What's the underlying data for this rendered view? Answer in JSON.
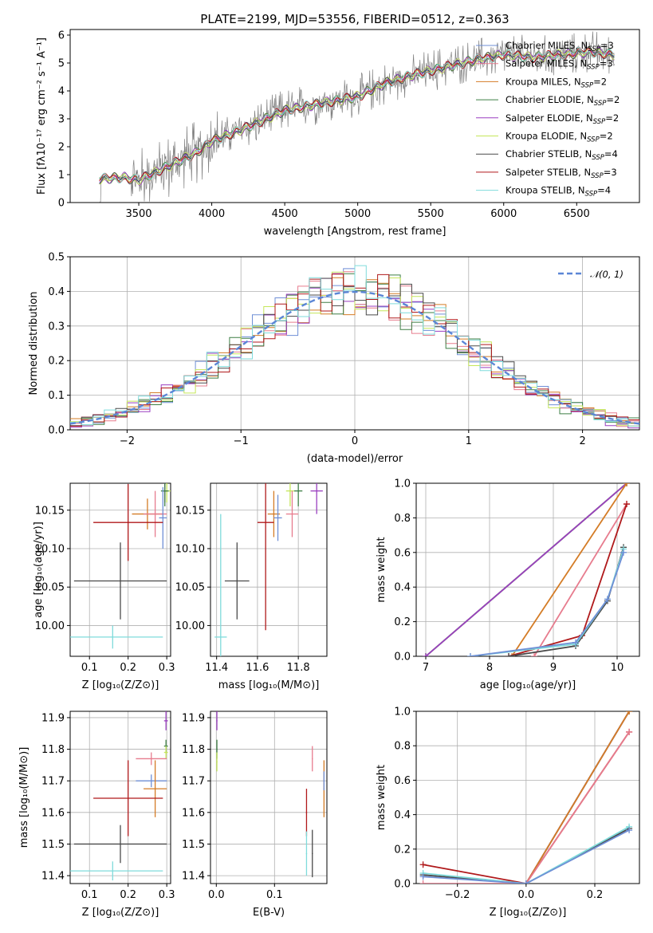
{
  "title": "PLATE=2199, MJD=53556, FIBERID=0512, z=0.363",
  "colors": {
    "chabrier_miles": "#6f8fd6",
    "salpeter_miles": "#e77c8e",
    "kroupa_miles": "#d47c26",
    "chabrier_elodie": "#3e7f45",
    "salpeter_elodie": "#9a3fc0",
    "kroupa_elodie": "#c5e65a",
    "chabrier_stelib": "#4a4a4a",
    "salpeter_stelib": "#b0191b",
    "kroupa_stelib": "#7fdbdb",
    "data": "#808080"
  },
  "chart_data": [
    {
      "id": "spectrum",
      "type": "line",
      "xlabel": "wavelength [Angstrom, rest frame]",
      "ylabel": "Flux [fλ10⁻¹⁷ erg cm⁻² s⁻¹ A⁻¹]",
      "xlim": [
        3030,
        6930
      ],
      "ylim": [
        0,
        6.2
      ],
      "xticks": [
        "3500",
        "4000",
        "4500",
        "5000",
        "5500",
        "6000",
        "6500"
      ],
      "yticks": [
        "0",
        "1",
        "2",
        "3",
        "4",
        "5",
        "6"
      ],
      "continuum": {
        "x": [
          3230,
          3400,
          3500,
          3700,
          3900,
          4000,
          4200,
          4500,
          4800,
          5000,
          5200,
          5400,
          5600,
          5800,
          6000,
          6200,
          6400,
          6600,
          6760
        ],
        "y": [
          0.85,
          0.9,
          0.8,
          1.3,
          1.8,
          2.2,
          2.6,
          3.3,
          3.6,
          3.8,
          4.3,
          4.6,
          4.85,
          5.1,
          5.3,
          5.2,
          5.3,
          5.4,
          5.3
        ]
      },
      "legend": [
        "Chabrier MILES, N_SSP=3",
        "Salpeter MILES, N_SSP=3",
        "Kroupa MILES, N_SSP=2",
        "Chabrier ELODIE, N_SSP=2",
        "Salpeter ELODIE, N_SSP=2",
        "Kroupa ELODIE, N_SSP=2",
        "Chabrier STELIB, N_SSP=4",
        "Salpeter STELIB, N_SSP=3",
        "Kroupa STELIB, N_SSP=4"
      ],
      "legend_position": "top-right"
    },
    {
      "id": "residuals",
      "type": "line",
      "xlabel": "(data-model)/error",
      "ylabel": "Normed distribution",
      "xlim": [
        -2.5,
        2.5
      ],
      "ylim": [
        0,
        0.5
      ],
      "xticks": [
        "−2",
        "−1",
        "0",
        "1",
        "2"
      ],
      "yticks": [
        "0.0",
        "0.1",
        "0.2",
        "0.3",
        "0.4",
        "0.5"
      ],
      "legend": [
        "𝒩(0, 1)"
      ],
      "legend_position": "top-right",
      "bins": 50,
      "base_distribution": "normal(0, 1)",
      "grid": true
    },
    {
      "id": "age_vs_Z",
      "type": "scatter",
      "xlabel": "Z [log₁₀(Z/Z⊙)]",
      "ylabel": "age  [log₁₀(age/yr)]",
      "xlim": [
        0.05,
        0.31
      ],
      "ylim": [
        9.96,
        10.185
      ],
      "xticks": [
        "0.1",
        "0.2",
        "0.3"
      ],
      "yticks": [
        "10.00",
        "10.05",
        "10.10",
        "10.15"
      ],
      "grid": true,
      "points": [
        {
          "x": 0.3,
          "y": 10.175,
          "xerr": 0.01,
          "yerr": 0.015,
          "series": "kroupa_elodie"
        },
        {
          "x": 0.295,
          "y": 10.175,
          "xerr": 0.005,
          "yerr": 0.015,
          "series": "salpeter_elodie"
        },
        {
          "x": 0.295,
          "y": 10.175,
          "xerr": 0.01,
          "yerr": 0.02,
          "series": "chabrier_elodie"
        },
        {
          "x": 0.25,
          "y": 10.145,
          "xerr": 0.04,
          "yerr": 0.02,
          "series": "kroupa_miles"
        },
        {
          "x": 0.27,
          "y": 10.145,
          "xerr": 0.03,
          "yerr": 0.03,
          "series": "salpeter_miles"
        },
        {
          "x": 0.29,
          "y": 10.14,
          "xerr": 0.01,
          "yerr": 0.04,
          "series": "chabrier_miles"
        },
        {
          "x": 0.2,
          "y": 10.134,
          "xerr": 0.09,
          "yerr": 0.05,
          "series": "salpeter_stelib"
        },
        {
          "x": 0.18,
          "y": 10.058,
          "xerr": 0.12,
          "yerr": 0.05,
          "series": "chabrier_stelib"
        },
        {
          "x": 0.16,
          "y": 9.985,
          "xerr": 0.13,
          "yerr": 0.015,
          "series": "kroupa_stelib"
        }
      ]
    },
    {
      "id": "age_vs_mass",
      "type": "scatter",
      "xlabel": "mass [log₁₀(M/M⊙)]",
      "ylabel": "",
      "xlim": [
        11.37,
        11.94
      ],
      "ylim": [
        9.96,
        10.185
      ],
      "xticks": [
        "11.4",
        "11.6",
        "11.8"
      ],
      "yticks": [
        "10.00",
        "10.05",
        "10.10",
        "10.15"
      ],
      "grid": true,
      "points": [
        {
          "x": 11.89,
          "y": 10.175,
          "xerr": 0.03,
          "yerr": 0.03,
          "series": "salpeter_elodie"
        },
        {
          "x": 11.8,
          "y": 10.175,
          "xerr": 0.02,
          "yerr": 0.02,
          "series": "chabrier_elodie"
        },
        {
          "x": 11.76,
          "y": 10.175,
          "xerr": 0.02,
          "yerr": 0.02,
          "series": "kroupa_elodie"
        },
        {
          "x": 11.77,
          "y": 10.145,
          "xerr": 0.03,
          "yerr": 0.03,
          "series": "salpeter_miles"
        },
        {
          "x": 11.68,
          "y": 10.145,
          "xerr": 0.03,
          "yerr": 0.03,
          "series": "kroupa_miles"
        },
        {
          "x": 11.7,
          "y": 10.14,
          "xerr": 0.02,
          "yerr": 0.03,
          "series": "chabrier_miles"
        },
        {
          "x": 11.64,
          "y": 10.134,
          "xerr": 0.04,
          "yerr": 0.14,
          "series": "salpeter_stelib"
        },
        {
          "x": 11.5,
          "y": 10.058,
          "xerr": 0.06,
          "yerr": 0.05,
          "series": "chabrier_stelib"
        },
        {
          "x": 11.42,
          "y": 9.985,
          "xerr": 0.03,
          "yerr": 0.16,
          "series": "kroupa_stelib"
        }
      ]
    },
    {
      "id": "massweight_vs_age",
      "type": "line",
      "xlabel": "age  [log₁₀(age/yr)]",
      "ylabel": "mass weight",
      "xlim": [
        6.85,
        10.35
      ],
      "ylim": [
        0,
        1
      ],
      "xticks": [
        "7",
        "8",
        "9",
        "10"
      ],
      "yticks": [
        "0.0",
        "0.2",
        "0.4",
        "0.6",
        "0.8",
        "1.0"
      ],
      "grid": true,
      "series": [
        {
          "key": "kroupa_elodie",
          "x": [
            7.0,
            10.15
          ],
          "y": [
            0.0,
            1.0
          ]
        },
        {
          "key": "chabrier_elodie",
          "x": [
            7.0,
            10.15
          ],
          "y": [
            0.0,
            1.0
          ]
        },
        {
          "key": "salpeter_elodie",
          "x": [
            7.0,
            10.15
          ],
          "y": [
            0.0,
            1.0
          ]
        },
        {
          "key": "kroupa_miles",
          "x": [
            8.35,
            10.15
          ],
          "y": [
            0.0,
            1.0
          ]
        },
        {
          "key": "salpeter_miles",
          "x": [
            8.7,
            10.15
          ],
          "y": [
            0.0,
            0.88
          ]
        },
        {
          "key": "salpeter_stelib",
          "x": [
            8.3,
            9.45,
            10.15
          ],
          "y": [
            0.0,
            0.12,
            0.88
          ]
        },
        {
          "key": "chabrier_stelib",
          "x": [
            8.3,
            9.35,
            9.85,
            10.1
          ],
          "y": [
            0.0,
            0.06,
            0.32,
            0.63
          ]
        },
        {
          "key": "kroupa_stelib",
          "x": [
            7.7,
            9.35,
            9.85,
            10.1
          ],
          "y": [
            0.0,
            0.07,
            0.33,
            0.62
          ]
        },
        {
          "key": "chabrier_miles",
          "x": [
            7.7,
            9.35,
            9.85,
            10.1
          ],
          "y": [
            0.0,
            0.08,
            0.33,
            0.6
          ]
        }
      ]
    },
    {
      "id": "mass_vs_Z",
      "type": "scatter",
      "xlabel": "Z [log₁₀(Z/Z⊙)]",
      "ylabel": "mass [log₁₀(M/M⊙)]",
      "xlim": [
        0.05,
        0.31
      ],
      "ylim": [
        11.375,
        11.92
      ],
      "xticks": [
        "0.1",
        "0.2",
        "0.3"
      ],
      "yticks": [
        "11.4",
        "11.5",
        "11.6",
        "11.7",
        "11.8",
        "11.9"
      ],
      "grid": true,
      "points": [
        {
          "x": 0.298,
          "y": 11.89,
          "xerr": 0.005,
          "yerr": 0.03,
          "series": "salpeter_elodie"
        },
        {
          "x": 0.298,
          "y": 11.81,
          "xerr": 0.005,
          "yerr": 0.02,
          "series": "chabrier_elodie"
        },
        {
          "x": 0.298,
          "y": 11.79,
          "xerr": 0.005,
          "yerr": 0.02,
          "series": "kroupa_elodie"
        },
        {
          "x": 0.26,
          "y": 11.77,
          "xerr": 0.04,
          "yerr": 0.02,
          "series": "salpeter_miles"
        },
        {
          "x": 0.26,
          "y": 11.7,
          "xerr": 0.04,
          "yerr": 0.02,
          "series": "chabrier_miles"
        },
        {
          "x": 0.27,
          "y": 11.675,
          "xerr": 0.03,
          "yerr": 0.09,
          "series": "kroupa_miles"
        },
        {
          "x": 0.2,
          "y": 11.645,
          "xerr": 0.09,
          "yerr": 0.12,
          "series": "salpeter_stelib"
        },
        {
          "x": 0.18,
          "y": 11.5,
          "xerr": 0.12,
          "yerr": 0.06,
          "series": "chabrier_stelib"
        },
        {
          "x": 0.16,
          "y": 11.415,
          "xerr": 0.13,
          "yerr": 0.03,
          "series": "kroupa_stelib"
        }
      ]
    },
    {
      "id": "mass_vs_ebv",
      "type": "scatter",
      "xlabel": "E(B-V)",
      "ylabel": "",
      "xlim": [
        -0.01,
        0.19
      ],
      "ylim": [
        11.375,
        11.92
      ],
      "xticks": [
        "0.0",
        "0.1"
      ],
      "yticks": [
        "11.4",
        "11.5",
        "11.6",
        "11.7",
        "11.8",
        "11.9"
      ],
      "grid": true,
      "points": [
        {
          "x": 0.001,
          "y": 11.89,
          "xerr": 0,
          "yerr": 0.03,
          "series": "salpeter_elodie"
        },
        {
          "x": 0.001,
          "y": 11.8,
          "xerr": 0,
          "yerr": 0.03,
          "series": "chabrier_elodie"
        },
        {
          "x": 0.001,
          "y": 11.76,
          "xerr": 0,
          "yerr": 0.03,
          "series": "kroupa_elodie"
        },
        {
          "x": 0.165,
          "y": 11.77,
          "xerr": 0,
          "yerr": 0.04,
          "series": "salpeter_miles"
        },
        {
          "x": 0.185,
          "y": 11.675,
          "xerr": 0,
          "yerr": 0.09,
          "series": "kroupa_miles"
        },
        {
          "x": 0.185,
          "y": 11.7,
          "xerr": 0,
          "yerr": 0.03,
          "series": "chabrier_miles"
        },
        {
          "x": 0.155,
          "y": 11.6,
          "xerr": 0,
          "yerr": 0.075,
          "series": "salpeter_stelib"
        },
        {
          "x": 0.165,
          "y": 11.47,
          "xerr": 0,
          "yerr": 0.075,
          "series": "chabrier_stelib"
        },
        {
          "x": 0.155,
          "y": 11.47,
          "xerr": 0,
          "yerr": 0.07,
          "series": "kroupa_stelib"
        }
      ]
    },
    {
      "id": "massweight_vs_Z",
      "type": "line",
      "xlabel": "Z [log₁₀(Z/Z⊙)]",
      "ylabel": "mass weight",
      "xlim": [
        -0.32,
        0.33
      ],
      "ylim": [
        0,
        1
      ],
      "xticks": [
        "−0.2",
        "0.0",
        "0.2"
      ],
      "yticks": [
        "0.0",
        "0.2",
        "0.4",
        "0.6",
        "0.8",
        "1.0"
      ],
      "grid": true,
      "series": [
        {
          "key": "kroupa_elodie",
          "x": [
            0.0,
            0.3
          ],
          "y": [
            0.0,
            1.0
          ]
        },
        {
          "key": "chabrier_elodie",
          "x": [
            0.0,
            0.3
          ],
          "y": [
            0.0,
            1.0
          ]
        },
        {
          "key": "salpeter_elodie",
          "x": [
            0.0,
            0.3
          ],
          "y": [
            0.0,
            1.0
          ]
        },
        {
          "key": "kroupa_miles",
          "x": [
            0.0,
            0.3
          ],
          "y": [
            0.0,
            1.0
          ]
        },
        {
          "key": "salpeter_stelib",
          "x": [
            -0.3,
            0.0,
            0.3
          ],
          "y": [
            0.11,
            0.0,
            0.88
          ]
        },
        {
          "key": "salpeter_miles",
          "x": [
            -0.3,
            0.0,
            0.3
          ],
          "y": [
            0.0,
            0.0,
            0.88
          ]
        },
        {
          "key": "chabrier_stelib",
          "x": [
            -0.3,
            0.0,
            0.3
          ],
          "y": [
            0.05,
            0.0,
            0.32
          ]
        },
        {
          "key": "kroupa_stelib",
          "x": [
            -0.3,
            0.0,
            0.3
          ],
          "y": [
            0.06,
            0.0,
            0.33
          ]
        },
        {
          "key": "chabrier_miles",
          "x": [
            -0.3,
            0.0,
            0.3
          ],
          "y": [
            0.04,
            0.0,
            0.31
          ]
        }
      ]
    }
  ]
}
